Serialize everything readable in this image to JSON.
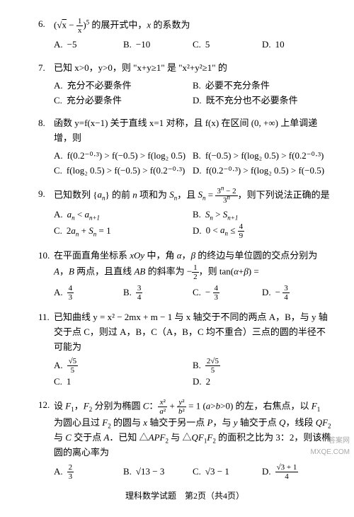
{
  "questions": [
    {
      "num": "6.",
      "text": "(√x − 1/x)⁵ 的展开式中，x 的系数为",
      "opts": [
        {
          "l": "A.",
          "v": "−5",
          "w": "w25"
        },
        {
          "l": "B.",
          "v": "−10",
          "w": "w25"
        },
        {
          "l": "C.",
          "v": "5",
          "w": "w25"
        },
        {
          "l": "D.",
          "v": "10",
          "w": "w25"
        }
      ]
    },
    {
      "num": "7.",
      "text": "已知 x>0，y>0，则 \"x+y≥1\" 是 \"x²+y²≥1\" 的",
      "opts": [
        {
          "l": "A.",
          "v": "充分不必要条件",
          "w": "w50"
        },
        {
          "l": "B.",
          "v": "必要不充分条件",
          "w": "w50"
        },
        {
          "l": "C.",
          "v": "充分必要条件",
          "w": "w50"
        },
        {
          "l": "D.",
          "v": "既不充分也不必要条件",
          "w": "w50"
        }
      ]
    },
    {
      "num": "8.",
      "text": "函数 y=f(x−1) 关于直线 x=1 对称，且 f(x) 在区间 (0, +∞) 上单调递增，则",
      "opts": [
        {
          "l": "A.",
          "v": "f(0.2⁻⁰·³) > f(−0.5) > f(log₂ 0.5)",
          "w": "w50"
        },
        {
          "l": "B.",
          "v": "f(−0.5) > f(log₂ 0.5) > f(0.2⁻⁰·³)",
          "w": "w50"
        },
        {
          "l": "C.",
          "v": "f(log₂ 0.5) > f(−0.5) > f(0.2⁻⁰·³)",
          "w": "w50"
        },
        {
          "l": "D.",
          "v": "f(0.2⁻⁰·³) > f(log₂ 0.5) > f(−0.5)",
          "w": "w50"
        }
      ]
    },
    {
      "num": "9.",
      "text": "已知数列 {aₙ} 的前 n 项和为 Sₙ，且 Sₙ = (3ⁿ − 2)/3ⁿ，则下列说法正确的是",
      "opts": [
        {
          "l": "A.",
          "v": "aₙ < aₙ₊₁",
          "w": "w50"
        },
        {
          "l": "B.",
          "v": "Sₙ > Sₙ₊₁",
          "w": "w50"
        },
        {
          "l": "C.",
          "v": "2aₙ + Sₙ = 1",
          "w": "w50"
        },
        {
          "l": "D.",
          "v": "0 < aₙ ≤ 4/9",
          "w": "w50"
        }
      ]
    },
    {
      "num": "10.",
      "text": "在平面直角坐标系 xOy 中，角 α，β 的终边与单位圆的交点分别为 A，B 两点，且直线 AB 的斜率为 −1/2，则 tan(α+β) =",
      "opts": [
        {
          "l": "A.",
          "v": "4/3",
          "w": "w25"
        },
        {
          "l": "B.",
          "v": "3/4",
          "w": "w25"
        },
        {
          "l": "C.",
          "v": "−4/3",
          "w": "w25"
        },
        {
          "l": "D.",
          "v": "−3/4",
          "w": "w25"
        }
      ]
    },
    {
      "num": "11.",
      "text": "已知曲线 y = x² − 2mx + m − 1 与 x 轴交于不同的两点 A，B，与 y 轴交于点 C，则过 A，B，C（A，B，C 均不重合）三点的圆的半径不可能为",
      "opts": [
        {
          "l": "A.",
          "v": "√5/5",
          "w": "w50"
        },
        {
          "l": "B.",
          "v": "2√5/5",
          "w": "w50"
        },
        {
          "l": "C.",
          "v": "1",
          "w": "w50"
        },
        {
          "l": "D.",
          "v": "2",
          "w": "w50"
        }
      ]
    },
    {
      "num": "12.",
      "text": "设 F₁，F₂ 分别为椭圆 C：x²/a² + y²/b² = 1 (a>b>0) 的左，右焦点，以 F₁ 为圆心且过 F₂ 的圆与 x 轴交于另一点 P，与 y 轴交于点 Q，线段 QF₂ 与 C 交于点 A．已知 △APF₂ 与 △QF₁F₂ 的面积之比为 3：2，则该椭圆的离心率为",
      "opts": [
        {
          "l": "A.",
          "v": "2/3",
          "w": "w25"
        },
        {
          "l": "B.",
          "v": "√13 − 3",
          "w": "w25"
        },
        {
          "l": "C.",
          "v": "√3 − 1",
          "w": "w25"
        },
        {
          "l": "D.",
          "v": "(√3+1)/4",
          "w": "w25"
        }
      ]
    }
  ],
  "footer": "理科数学试题　第2页（共4页）",
  "watermark_l1": "答案网",
  "watermark_l2": "MXQE.COM"
}
